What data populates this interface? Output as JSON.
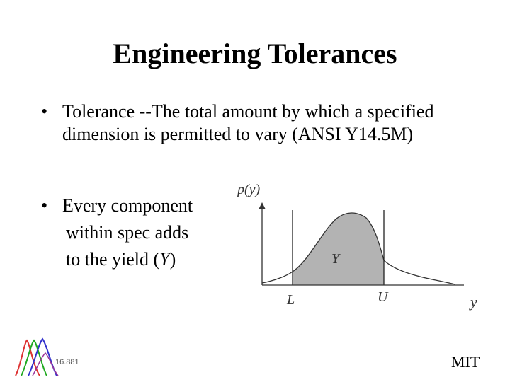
{
  "slide": {
    "title": "Engineering Tolerances",
    "bullets": [
      {
        "text": "Tolerance --The total amount by which a specified dimension is permitted to vary (ANSI Y14.5M)"
      },
      {
        "lines": [
          "Every component",
          "within spec adds",
          "to the yield ("
        ],
        "italic": "Y",
        "close": ")"
      }
    ],
    "footer": "MIT",
    "logo_text": "16.881"
  },
  "figure": {
    "y_axis_label": "p(y)",
    "x_axis_label": "y",
    "lower_limit": "L",
    "upper_limit": "U",
    "region_label": "Y",
    "shade_color": "#b3b3b3"
  }
}
